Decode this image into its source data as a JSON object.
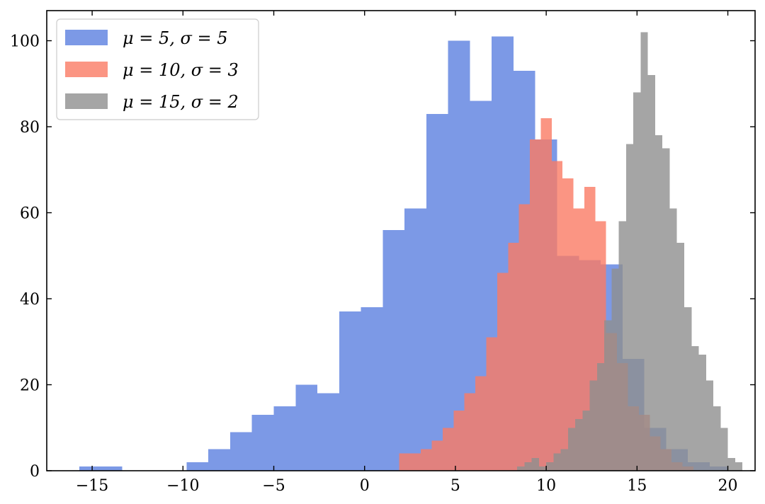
{
  "chart_data": {
    "type": "histogram",
    "title": "",
    "xlabel": "",
    "ylabel": "",
    "xlim": [
      -17.5,
      21.5
    ],
    "ylim": [
      0,
      107
    ],
    "x_ticks": [
      -15,
      -10,
      -5,
      0,
      5,
      10,
      15,
      20
    ],
    "x_tick_labels": [
      "−15",
      "−10",
      "−5",
      "0",
      "5",
      "10",
      "15",
      "20"
    ],
    "y_ticks": [
      0,
      20,
      40,
      60,
      80,
      100
    ],
    "y_tick_labels": [
      "0",
      "20",
      "40",
      "60",
      "80",
      "100"
    ],
    "grid": false,
    "legend_position": "top-left",
    "series": [
      {
        "name": "μ = 5, σ = 5",
        "color": "#5b7fe0",
        "opacity": 0.8,
        "edges": [
          -15.7,
          -13.35,
          -11.0,
          -9.8,
          -8.6,
          -7.4,
          -6.2,
          -5.0,
          -3.8,
          -2.6,
          -1.4,
          -0.2,
          1.0,
          2.2,
          3.4,
          4.6,
          5.8,
          7.0,
          8.2,
          9.4,
          10.6,
          11.8,
          13.0,
          14.2,
          15.4,
          16.6,
          17.8,
          19.0,
          20.0
        ],
        "counts": [
          1,
          0,
          0,
          2,
          5,
          9,
          13,
          15,
          20,
          18,
          37,
          38,
          56,
          61,
          83,
          100,
          86,
          101,
          93,
          77,
          50,
          49,
          48,
          26,
          10,
          5,
          2,
          1
        ]
      },
      {
        "name": "μ = 10, σ = 3",
        "color": "#fa7b64",
        "opacity": 0.8,
        "edges": [
          1.9,
          2.5,
          3.1,
          3.7,
          4.3,
          4.9,
          5.5,
          6.1,
          6.7,
          7.3,
          7.9,
          8.5,
          9.1,
          9.7,
          10.3,
          10.9,
          11.5,
          12.1,
          12.7,
          13.3,
          13.9,
          14.5,
          15.1,
          15.7,
          16.3,
          16.9,
          17.5,
          18.1
        ],
        "counts": [
          4,
          4,
          5,
          7,
          10,
          14,
          18,
          22,
          31,
          46,
          53,
          62,
          77,
          82,
          72,
          68,
          61,
          66,
          58,
          32,
          25,
          15,
          13,
          8,
          5,
          2,
          1
        ]
      },
      {
        "name": "μ = 15, σ = 2",
        "color": "#8e8e8e",
        "opacity": 0.8,
        "edges": [
          8.4,
          8.8,
          9.2,
          9.6,
          10.0,
          10.4,
          10.8,
          11.2,
          11.6,
          12.0,
          12.4,
          12.8,
          13.2,
          13.6,
          14.0,
          14.4,
          14.8,
          15.2,
          15.6,
          16.0,
          16.4,
          16.8,
          17.2,
          17.6,
          18.0,
          18.4,
          18.8,
          19.2,
          19.6,
          20.0,
          20.4,
          20.8
        ],
        "counts": [
          1,
          2,
          3,
          1,
          2,
          4,
          5,
          10,
          12,
          14,
          21,
          25,
          35,
          47,
          58,
          76,
          88,
          102,
          92,
          78,
          75,
          61,
          53,
          38,
          29,
          27,
          21,
          15,
          10,
          3,
          2
        ]
      }
    ]
  }
}
